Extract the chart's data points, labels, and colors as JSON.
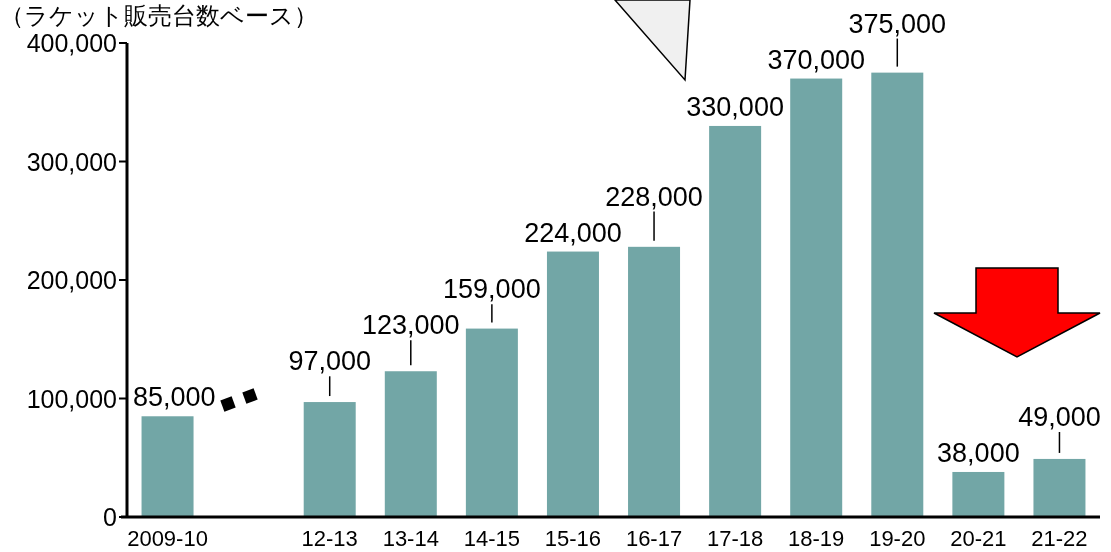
{
  "chart_data": {
    "type": "bar",
    "title": "（ラケット販売台数ベース）",
    "categories": [
      "2009-10",
      null,
      "12-13",
      "13-14",
      "14-15",
      "15-16",
      "16-17",
      "17-18",
      "18-19",
      "19-20",
      "20-21",
      "21-22"
    ],
    "values": [
      85000,
      null,
      97000,
      123000,
      159000,
      224000,
      228000,
      330000,
      370000,
      375000,
      38000,
      49000
    ],
    "color": "#72a6a6",
    "ylim": [
      0,
      400000
    ],
    "yticks": [
      {
        "value": 0,
        "label": "0"
      },
      {
        "value": 100000,
        "label": "100,000"
      },
      {
        "value": 200000,
        "label": "200,000"
      },
      {
        "value": 300000,
        "label": "300,000"
      },
      {
        "value": 400000,
        "label": "400,000"
      }
    ],
    "value_labels": [
      "85,000",
      null,
      "97,000",
      "123,000",
      "159,000",
      "224,000",
      "228,000",
      "330,000",
      "370,000",
      "375,000",
      "38,000",
      "49,000"
    ]
  }
}
